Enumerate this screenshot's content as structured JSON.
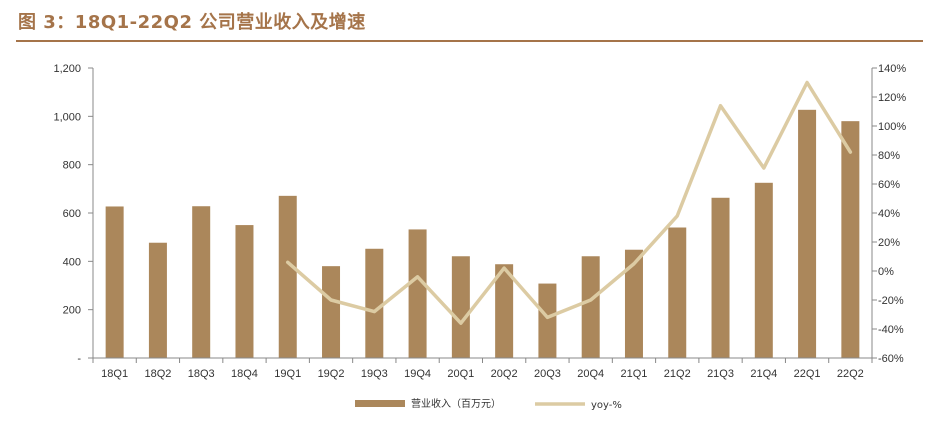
{
  "title": "图 3：18Q1-22Q2 公司营业收入及增速",
  "chart_data": {
    "type": "bar",
    "categories": [
      "18Q1",
      "18Q2",
      "18Q3",
      "18Q4",
      "19Q1",
      "19Q2",
      "19Q3",
      "19Q4",
      "20Q1",
      "20Q2",
      "20Q3",
      "20Q4",
      "21Q1",
      "21Q2",
      "21Q3",
      "21Q4",
      "22Q1",
      "22Q2"
    ],
    "series": [
      {
        "name": "营业收入（百万元）",
        "type": "bar",
        "axis": "left",
        "color": "#ab875b",
        "values": [
          627,
          477,
          628,
          550,
          671,
          380,
          452,
          532,
          421,
          388,
          308,
          421,
          448,
          540,
          663,
          725,
          1027,
          980
        ]
      },
      {
        "name": "yoy-%",
        "type": "line",
        "axis": "right",
        "color": "#dccba3",
        "values": [
          null,
          null,
          null,
          null,
          6,
          -20,
          -28,
          -4,
          -36,
          2,
          -32,
          -20,
          5,
          38,
          114,
          71,
          130,
          82
        ]
      }
    ],
    "y_left": {
      "min": 0,
      "max": 1200,
      "step": 200,
      "ticks": [
        "-",
        "200",
        "400",
        "600",
        "800",
        "1,000",
        "1,200"
      ]
    },
    "y_right": {
      "min": -60,
      "max": 140,
      "step": 20,
      "ticks": [
        "-60%",
        "-40%",
        "-20%",
        "0%",
        "20%",
        "40%",
        "60%",
        "80%",
        "100%",
        "120%",
        "140%"
      ]
    },
    "legend_position": "bottom",
    "grid": false
  }
}
